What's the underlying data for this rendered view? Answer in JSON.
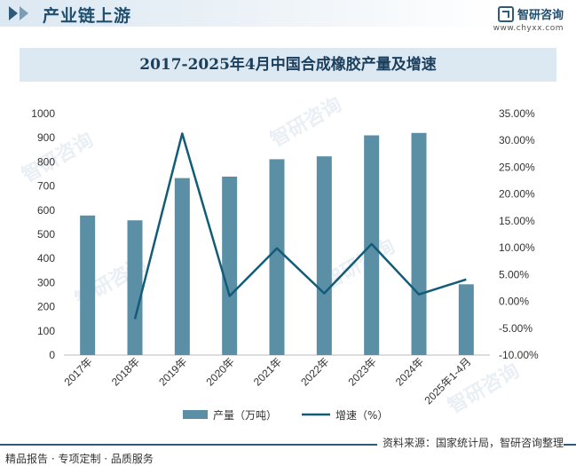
{
  "header": {
    "section_title": "产业链上游",
    "brand_name": "智研咨询",
    "brand_url": "www.chyxx.com"
  },
  "footer": {
    "left_text": "精品报告 · 专项定制 · 品质服务",
    "source_text": "资料来源：国家统计局，智研咨询整理"
  },
  "colors": {
    "bar": "#5b8fa6",
    "line": "#135c78",
    "accent": "#1f4e6e"
  },
  "chart_data": {
    "type": "bar",
    "title": "2017-2025年4月中国合成橡胶产量及增速",
    "categories": [
      "2017年",
      "2018年",
      "2019年",
      "2020年",
      "2021年",
      "2022年",
      "2023年",
      "2024年",
      "2025年1-4月"
    ],
    "series": [
      {
        "name": "产量（万吨）",
        "type": "bar",
        "axis": "left",
        "values": [
          578,
          558,
          733,
          739,
          811,
          823,
          910,
          920,
          293
        ]
      },
      {
        "name": "增速（%）",
        "type": "line",
        "axis": "right",
        "values": [
          null,
          -3.3,
          31.3,
          1.0,
          9.9,
          1.5,
          10.7,
          1.3,
          4.1
        ]
      }
    ],
    "y_left": {
      "min": 0,
      "max": 1000,
      "step": 100
    },
    "y_right": {
      "min": -10,
      "max": 35,
      "step": 5,
      "format": "0.00%"
    },
    "legend_position": "bottom",
    "grid": false
  }
}
